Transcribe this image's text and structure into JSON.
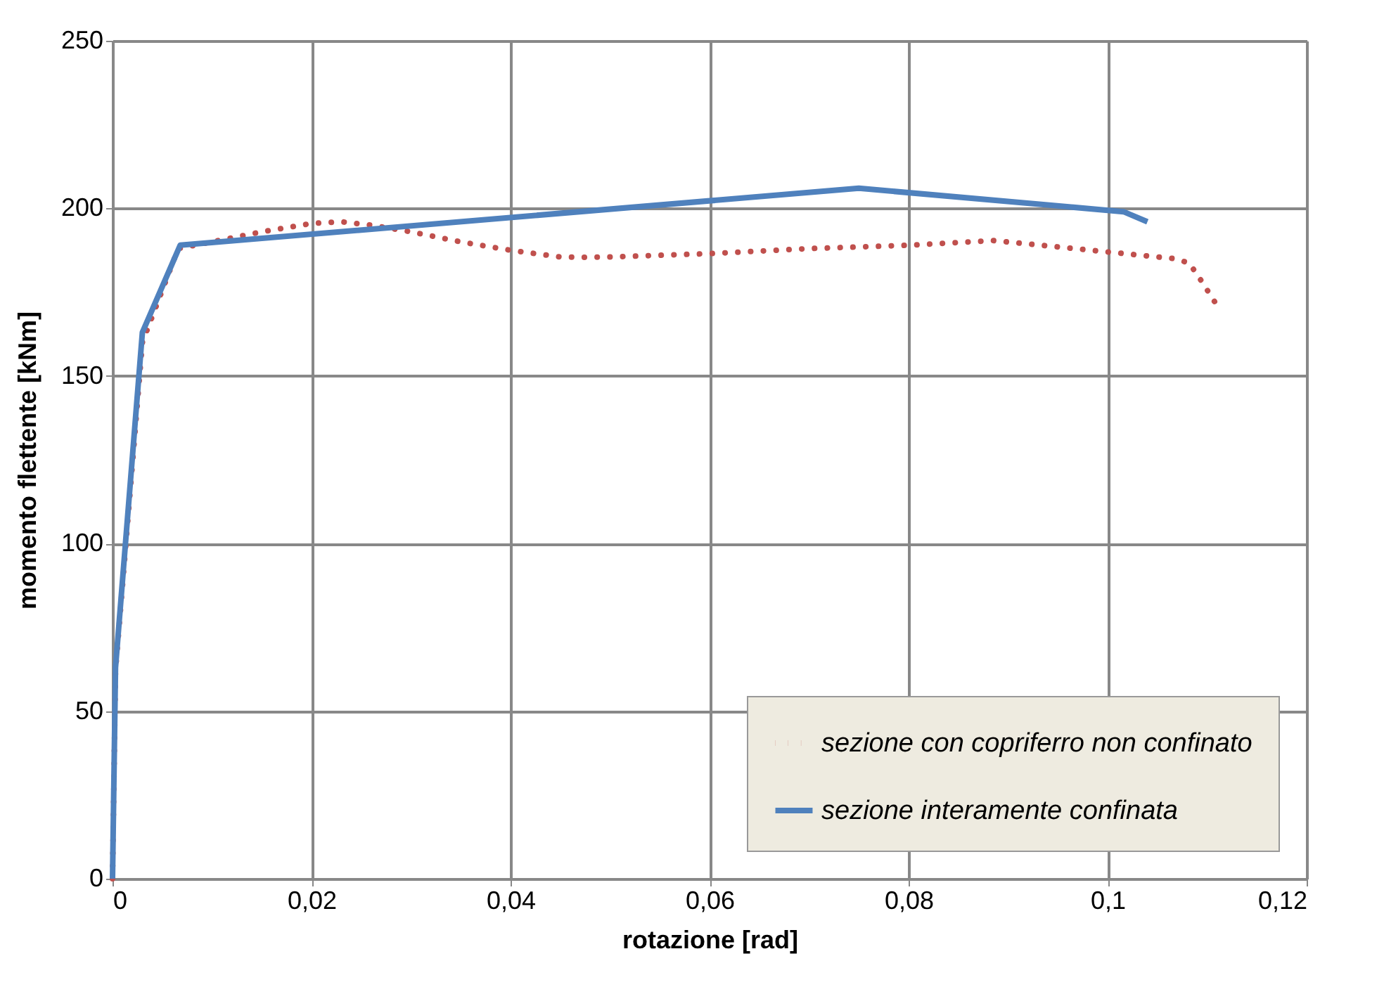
{
  "chart_data": {
    "type": "line",
    "xlabel": "rotazione [rad]",
    "ylabel": "momento flettente [kNm]",
    "xlim": [
      0,
      0.12
    ],
    "ylim": [
      0,
      250
    ],
    "xticks": [
      0,
      {
        "value": 0.02,
        "label": "0,02"
      },
      {
        "value": 0.04,
        "label": "0,04"
      },
      {
        "value": 0.06,
        "label": "0,06"
      },
      {
        "value": 0.08,
        "label": "0,08"
      },
      {
        "value": 0.1,
        "label": "0,1"
      },
      {
        "value": 0.12,
        "label": "0,12"
      }
    ],
    "yticks": [
      0,
      50,
      100,
      150,
      200,
      250
    ],
    "grid": true,
    "legend": "bottom right",
    "series": [
      {
        "name": "sezione con copriferro non confinato",
        "color": "#c0504d",
        "line_style": "dotted",
        "x": [
          0,
          0.0003,
          0.003,
          0.0066,
          0.01,
          0.015,
          0.02,
          0.023,
          0.026,
          0.03,
          0.035,
          0.04,
          0.045,
          0.047,
          0.05,
          0.06,
          0.07,
          0.08,
          0.0885,
          0.095,
          0.1,
          0.1067,
          0.1082,
          0.1095,
          0.111
        ],
        "values": [
          0,
          62,
          160,
          188,
          190,
          193,
          195.5,
          196,
          195,
          193,
          190,
          187.5,
          185.5,
          185.4,
          185.5,
          186.5,
          188,
          189,
          190.4,
          188.5,
          187,
          185,
          183.7,
          178,
          171
        ]
      },
      {
        "name": "sezione interamente confinata",
        "color": "#4f81bd",
        "line_style": "solid",
        "x": [
          0,
          0.0003,
          0.003,
          0.0068,
          0.075,
          0.1016,
          0.104
        ],
        "values": [
          0,
          63,
          163,
          189,
          206,
          199,
          196
        ]
      }
    ]
  }
}
